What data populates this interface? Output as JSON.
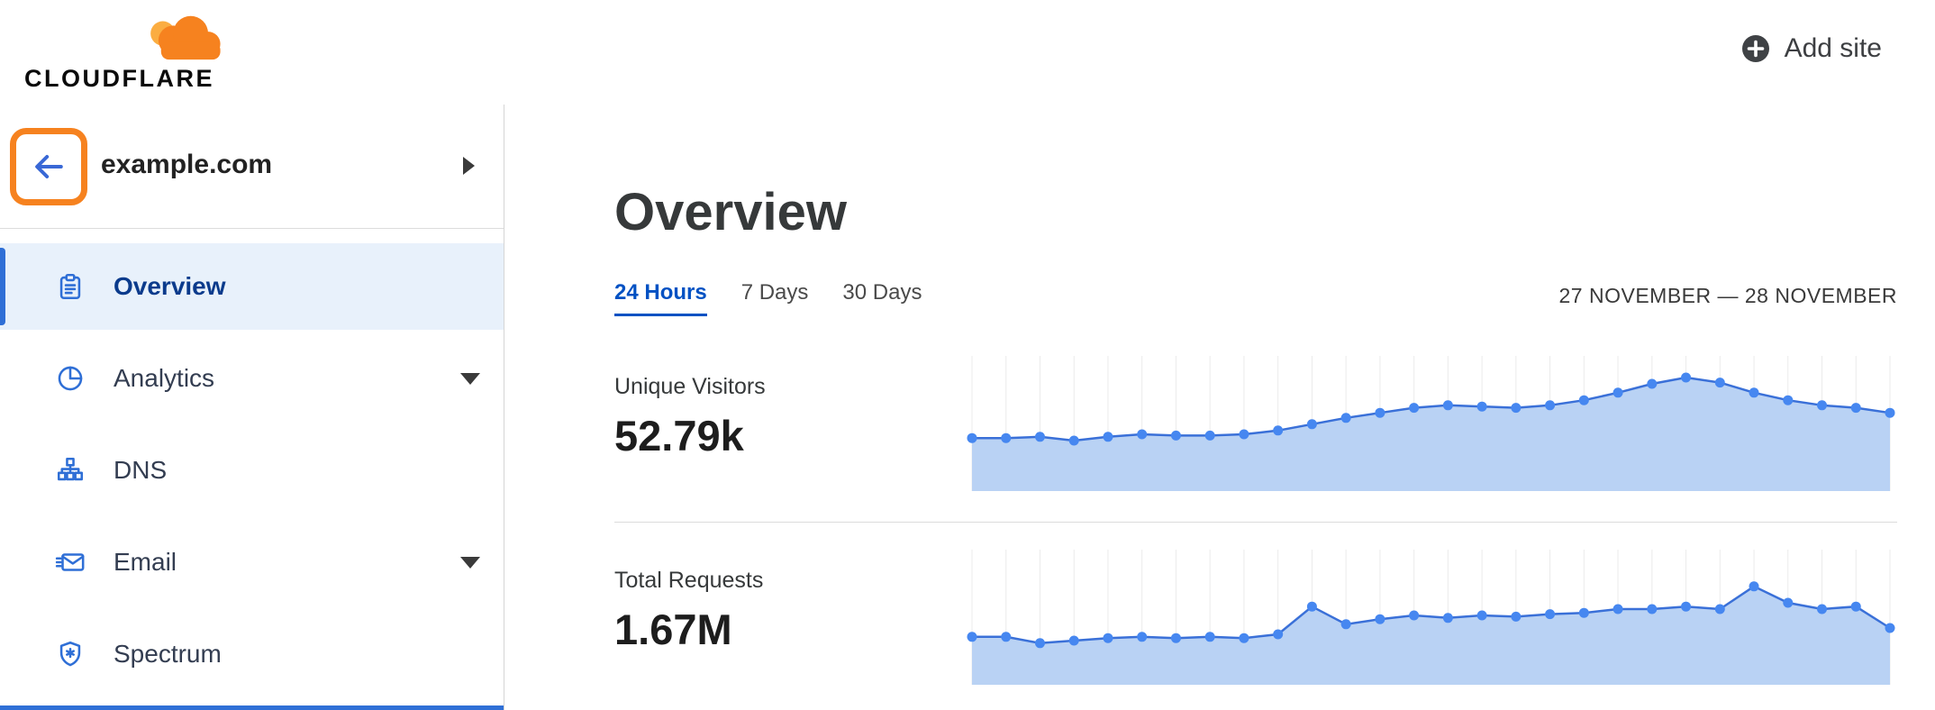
{
  "header": {
    "logo_text": "CLOUDFLARE",
    "add_site_label": "Add site"
  },
  "sidebar": {
    "site_name": "example.com",
    "back_icon": "arrow-left",
    "expand_icon": "triangle-right",
    "items": [
      {
        "label": "Overview",
        "icon": "clipboard-icon",
        "active": true,
        "caret": false
      },
      {
        "label": "Analytics",
        "icon": "pie-chart-icon",
        "active": false,
        "caret": true
      },
      {
        "label": "DNS",
        "icon": "sitemap-icon",
        "active": false,
        "caret": false
      },
      {
        "label": "Email",
        "icon": "envelope-icon",
        "active": false,
        "caret": true
      },
      {
        "label": "Spectrum",
        "icon": "shield-icon",
        "active": false,
        "caret": false
      }
    ]
  },
  "main": {
    "title": "Overview",
    "tabs": [
      {
        "label": "24 Hours",
        "active": true
      },
      {
        "label": "7 Days",
        "active": false
      },
      {
        "label": "30 Days",
        "active": false
      }
    ],
    "date_range": "27 NOVEMBER — 28 NOVEMBER",
    "metrics": [
      {
        "label": "Unique Visitors",
        "value": "52.79k"
      },
      {
        "label": "Total Requests",
        "value": "1.67M"
      }
    ]
  },
  "colors": {
    "brand_orange": "#f6821f",
    "brand_orange_light": "#fbad41",
    "link_blue": "#0051c3",
    "nav_icon_blue": "#2f6fd6",
    "active_item_bg": "#e8f1fb",
    "annotation_orange": "#f6821f"
  },
  "chart_data": [
    {
      "id": "unique-visitors",
      "type": "area",
      "title": "Unique Visitors (24 Hours)",
      "xlabel": "",
      "ylabel": "",
      "ylim": [
        0,
        100
      ],
      "grid": "vertical",
      "values": [
        42,
        42,
        43,
        40,
        43,
        45,
        44,
        44,
        45,
        48,
        53,
        58,
        62,
        66,
        68,
        67,
        66,
        68,
        72,
        78,
        85,
        90,
        86,
        78,
        72,
        68,
        66,
        62
      ],
      "grid_color": "#ebebeb",
      "fill_color": "#b9d2f4",
      "line_color": "#3a70d8",
      "point_color": "#4687f0"
    },
    {
      "id": "total-requests",
      "type": "area",
      "title": "Total Requests (24 Hours)",
      "xlabel": "",
      "ylabel": "",
      "ylim": [
        0,
        100
      ],
      "grid": "vertical",
      "values": [
        38,
        38,
        33,
        35,
        37,
        38,
        37,
        38,
        37,
        40,
        62,
        48,
        52,
        55,
        53,
        55,
        54,
        56,
        57,
        60,
        60,
        62,
        60,
        78,
        65,
        60,
        62,
        45
      ],
      "grid_color": "#ebebeb",
      "fill_color": "#b9d2f4",
      "line_color": "#3a70d8",
      "point_color": "#4687f0"
    }
  ]
}
